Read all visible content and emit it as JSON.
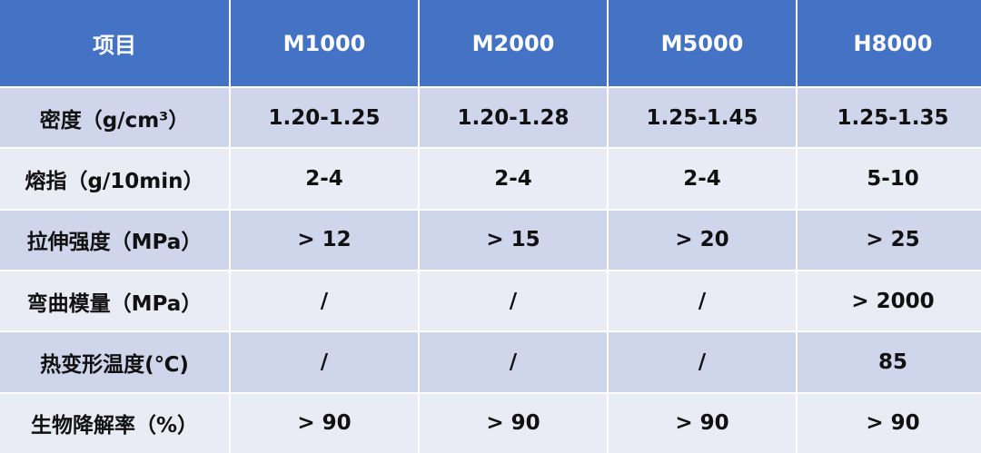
{
  "table": {
    "header": [
      "项目",
      "M1000",
      "M2000",
      "M5000",
      "H8000"
    ],
    "rows": [
      [
        "密度（g/cm³）",
        "1.20-1.25",
        "1.20-1.28",
        "1.25-1.45",
        "1.25-1.35"
      ],
      [
        "熔指（g/10min）",
        "2-4",
        "2-4",
        "2-4",
        "5-10"
      ],
      [
        "拉伸强度（MPa）",
        "> 12",
        "> 15",
        "> 20",
        "> 25"
      ],
      [
        "弯曲模量（MPa）",
        "/",
        "/",
        "/",
        "> 2000"
      ],
      [
        "热变形温度(℃)",
        "/",
        "/",
        "/",
        "85"
      ],
      [
        "生物降解率（%）",
        "> 90",
        "> 90",
        "> 90",
        "> 90"
      ]
    ]
  }
}
